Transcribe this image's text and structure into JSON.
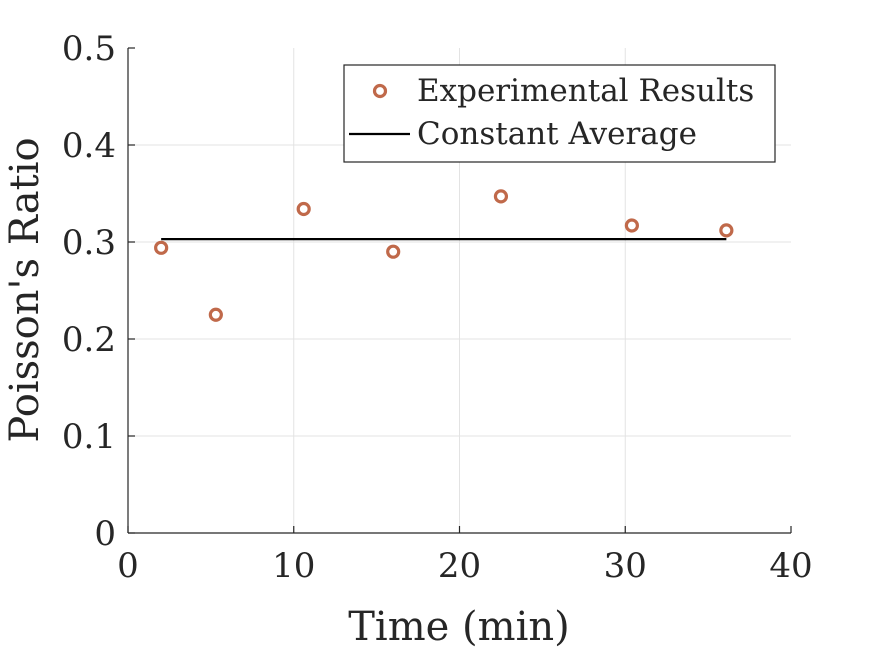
{
  "chart_data": {
    "type": "scatter",
    "xlabel": "Time (min)",
    "ylabel": "Poisson's Ratio",
    "xlim": [
      0,
      40
    ],
    "ylim": [
      0,
      0.5
    ],
    "xticks": [
      0,
      10,
      20,
      30,
      40
    ],
    "yticks": [
      0,
      0.1,
      0.2,
      0.3,
      0.4,
      0.5
    ],
    "xtick_labels": [
      "0",
      "10",
      "20",
      "30",
      "40"
    ],
    "ytick_labels": [
      "0",
      "0.1",
      "0.2",
      "0.3",
      "0.4",
      "0.5"
    ],
    "grid": true,
    "legend_position": "top-right",
    "series": [
      {
        "name": "Experimental Results",
        "kind": "marker",
        "marker": "circle-open",
        "color": "#C0694A",
        "x": [
          2.0,
          5.3,
          10.6,
          16.0,
          22.5,
          30.4,
          36.1
        ],
        "y": [
          0.294,
          0.225,
          0.334,
          0.29,
          0.347,
          0.317,
          0.312
        ]
      },
      {
        "name": "Constant Average",
        "kind": "line",
        "color": "#000000",
        "x": [
          2.0,
          36.1
        ],
        "y": [
          0.303,
          0.303
        ]
      }
    ]
  }
}
